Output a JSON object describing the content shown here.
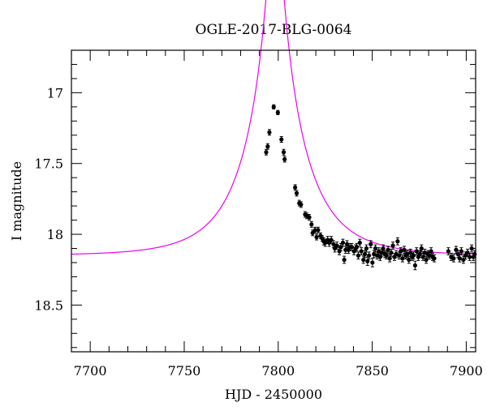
{
  "chart_data": {
    "type": "scatter",
    "title": "OGLE-2017-BLG-0064",
    "xlabel": "HJD - 2450000",
    "ylabel": "I magnitude",
    "xlim": [
      7690,
      7905
    ],
    "ylim": [
      18.83,
      16.7
    ],
    "y_inverted": true,
    "grid": false,
    "x_ticks": [
      7700,
      7750,
      7800,
      7850,
      7900
    ],
    "x_tick_labels": [
      "7700",
      "7750",
      "7800",
      "7850",
      "7900"
    ],
    "y_ticks": [
      17,
      17.5,
      18,
      18.5
    ],
    "y_tick_labels": [
      "17",
      "17.5",
      "18",
      "18.5"
    ],
    "colors": {
      "model": "#ee00ee",
      "points": "#000000",
      "axes": "#000000"
    },
    "model": {
      "t0": 7798.3,
      "u0": 0.1015,
      "tE": 30,
      "base_mag": 18.15
    },
    "series": [
      {
        "points": [
          [
            7793.6,
            17.42,
            0.02
          ],
          [
            7794.4,
            17.38,
            0.02
          ],
          [
            7795.3,
            17.28,
            0.02
          ],
          [
            7797.6,
            17.1,
            0.015
          ],
          [
            7799.8,
            17.14,
            0.015
          ],
          [
            7801.7,
            17.33,
            0.02
          ],
          [
            7802.9,
            17.42,
            0.02
          ],
          [
            7803.4,
            17.47,
            0.02
          ],
          [
            7809.0,
            17.67,
            0.02
          ],
          [
            7809.8,
            17.71,
            0.02
          ],
          [
            7811.2,
            17.78,
            0.02
          ],
          [
            7812.1,
            17.79,
            0.02
          ],
          [
            7814.3,
            17.86,
            0.02
          ],
          [
            7815.2,
            17.87,
            0.02
          ],
          [
            7816.5,
            17.88,
            0.02
          ],
          [
            7817.7,
            17.93,
            0.02
          ],
          [
            7818.3,
            17.99,
            0.02
          ],
          [
            7819.6,
            17.97,
            0.02
          ],
          [
            7820.4,
            18.02,
            0.02
          ],
          [
            7821.2,
            17.97,
            0.02
          ],
          [
            7822.5,
            18.01,
            0.02
          ],
          [
            7823.4,
            18.03,
            0.02
          ],
          [
            7824.2,
            18.05,
            0.025
          ],
          [
            7825.0,
            18.06,
            0.025
          ],
          [
            7826.3,
            18.04,
            0.025
          ],
          [
            7827.1,
            18.06,
            0.025
          ],
          [
            7828.2,
            18.04,
            0.025
          ],
          [
            7829.4,
            18.07,
            0.025
          ],
          [
            7830.1,
            18.1,
            0.025
          ],
          [
            7831.2,
            18.08,
            0.025
          ],
          [
            7832.5,
            18.12,
            0.025
          ],
          [
            7833.3,
            18.09,
            0.025
          ],
          [
            7834.4,
            18.06,
            0.025
          ],
          [
            7835.1,
            18.18,
            0.025
          ],
          [
            7835.8,
            18.11,
            0.025
          ],
          [
            7836.6,
            18.07,
            0.025
          ],
          [
            7837.4,
            18.11,
            0.025
          ],
          [
            7838.2,
            18.09,
            0.025
          ],
          [
            7839.1,
            18.09,
            0.025
          ],
          [
            7840.3,
            18.12,
            0.025
          ],
          [
            7841.2,
            18.1,
            0.025
          ],
          [
            7841.8,
            18.09,
            0.025
          ],
          [
            7842.6,
            18.15,
            0.025
          ],
          [
            7843.4,
            18.06,
            0.025
          ],
          [
            7844.2,
            18.12,
            0.025
          ],
          [
            7845.3,
            18.18,
            0.025
          ],
          [
            7846.1,
            18.14,
            0.025
          ],
          [
            7846.9,
            18.1,
            0.025
          ],
          [
            7847.5,
            18.19,
            0.03
          ],
          [
            7848.3,
            18.15,
            0.025
          ],
          [
            7849.2,
            18.07,
            0.025
          ],
          [
            7850.1,
            18.2,
            0.03
          ],
          [
            7850.9,
            18.14,
            0.025
          ],
          [
            7851.7,
            18.1,
            0.025
          ],
          [
            7852.6,
            18.15,
            0.025
          ],
          [
            7853.5,
            18.12,
            0.025
          ],
          [
            7854.2,
            18.16,
            0.025
          ],
          [
            7855.1,
            18.13,
            0.025
          ],
          [
            7855.8,
            18.1,
            0.025
          ],
          [
            7856.7,
            18.14,
            0.025
          ],
          [
            7857.6,
            18.15,
            0.025
          ],
          [
            7858.4,
            18.11,
            0.025
          ],
          [
            7859.3,
            18.17,
            0.025
          ],
          [
            7860.1,
            18.13,
            0.025
          ],
          [
            7861.0,
            18.08,
            0.025
          ],
          [
            7861.8,
            18.16,
            0.025
          ],
          [
            7862.7,
            18.14,
            0.025
          ],
          [
            7863.5,
            18.05,
            0.025
          ],
          [
            7864.3,
            18.15,
            0.025
          ],
          [
            7865.2,
            18.12,
            0.025
          ],
          [
            7866.1,
            18.17,
            0.025
          ],
          [
            7867.0,
            18.11,
            0.025
          ],
          [
            7867.8,
            18.15,
            0.025
          ],
          [
            7868.6,
            18.14,
            0.025
          ],
          [
            7869.5,
            18.18,
            0.025
          ],
          [
            7870.3,
            18.13,
            0.025
          ],
          [
            7871.2,
            18.16,
            0.025
          ],
          [
            7872.0,
            18.15,
            0.025
          ],
          [
            7872.8,
            18.22,
            0.03
          ],
          [
            7873.6,
            18.12,
            0.025
          ],
          [
            7874.5,
            18.16,
            0.025
          ],
          [
            7875.3,
            18.14,
            0.025
          ],
          [
            7876.2,
            18.1,
            0.025
          ],
          [
            7877.0,
            18.16,
            0.025
          ],
          [
            7877.9,
            18.13,
            0.025
          ],
          [
            7878.7,
            18.18,
            0.025
          ],
          [
            7879.6,
            18.14,
            0.025
          ],
          [
            7880.4,
            18.15,
            0.025
          ],
          [
            7881.3,
            18.12,
            0.025
          ],
          [
            7882.1,
            18.16,
            0.025
          ],
          [
            7883.0,
            18.17,
            0.025
          ],
          [
            7890.5,
            18.12,
            0.025
          ],
          [
            7892.0,
            18.16,
            0.025
          ],
          [
            7893.3,
            18.17,
            0.025
          ],
          [
            7894.6,
            18.11,
            0.025
          ],
          [
            7895.6,
            18.14,
            0.025
          ],
          [
            7896.5,
            18.17,
            0.025
          ],
          [
            7897.4,
            18.12,
            0.025
          ],
          [
            7898.5,
            18.18,
            0.025
          ],
          [
            7899.6,
            18.15,
            0.025
          ],
          [
            7900.7,
            18.13,
            0.025
          ],
          [
            7901.8,
            18.16,
            0.025
          ],
          [
            7902.9,
            18.1,
            0.025
          ],
          [
            7903.8,
            18.16,
            0.025
          ],
          [
            7904.5,
            18.14,
            0.025
          ]
        ]
      }
    ]
  }
}
